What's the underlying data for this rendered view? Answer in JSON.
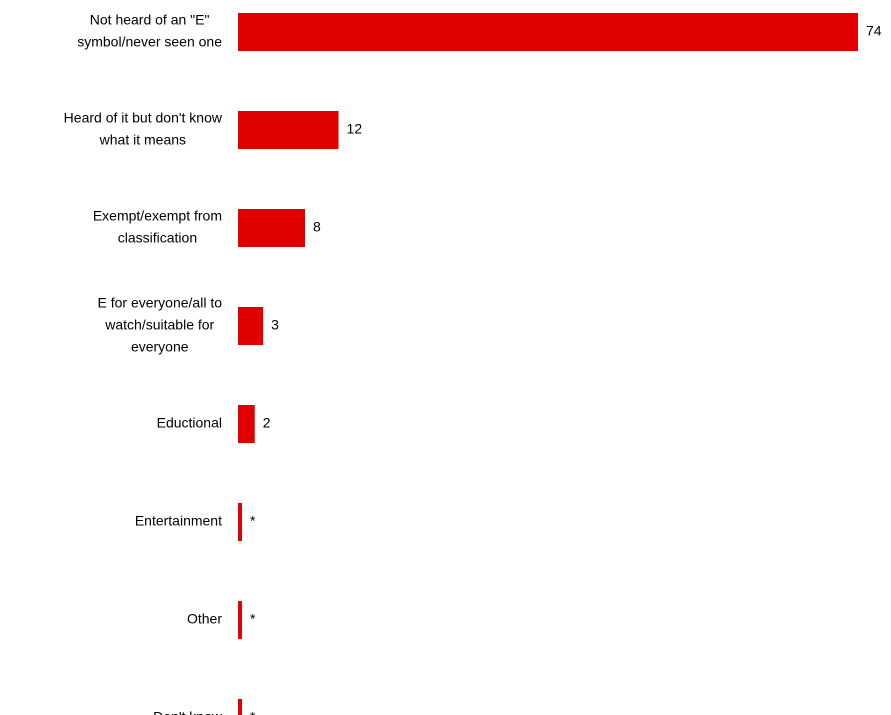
{
  "chart_data": {
    "type": "bar",
    "orientation": "horizontal",
    "categories": [
      [
        "Not heard of an \"E\"",
        "symbol/never seen one"
      ],
      [
        "Heard of it but don't know",
        "what it means"
      ],
      [
        "Exempt/exempt from",
        "classification"
      ],
      [
        "E for everyone/all to",
        "watch/suitable for",
        "everyone"
      ],
      [
        "Eductional"
      ],
      [
        "Entertainment"
      ],
      [
        "Other"
      ],
      [
        "Don't know"
      ]
    ],
    "values": [
      74,
      12,
      8,
      3,
      2,
      0.3,
      0.3,
      0.3
    ],
    "value_labels": [
      "74",
      "12",
      "8",
      "3",
      "2",
      "*",
      "*",
      "*"
    ],
    "xlim": [
      0,
      74
    ],
    "bar_color": "#e00000",
    "grid": false,
    "legend": "none"
  }
}
